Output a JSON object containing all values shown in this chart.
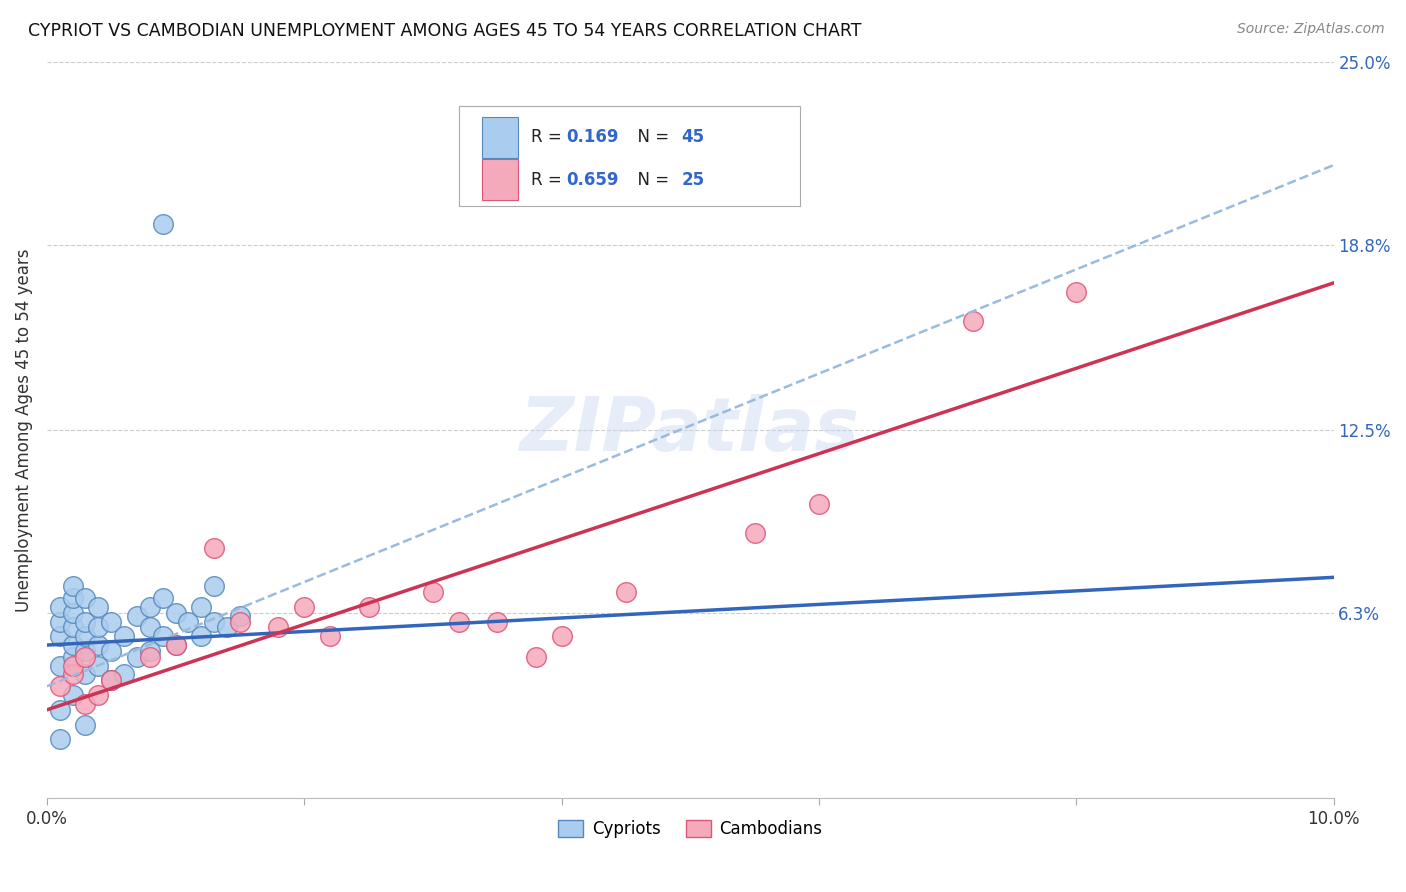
{
  "title": "CYPRIOT VS CAMBODIAN UNEMPLOYMENT AMONG AGES 45 TO 54 YEARS CORRELATION CHART",
  "source": "Source: ZipAtlas.com",
  "ylabel": "Unemployment Among Ages 45 to 54 years",
  "xlim": [
    0.0,
    0.1
  ],
  "ylim": [
    0.0,
    0.25
  ],
  "xtick_positions": [
    0.0,
    0.02,
    0.04,
    0.06,
    0.08,
    0.1
  ],
  "xtick_labels": [
    "0.0%",
    "",
    "",
    "",
    "",
    "10.0%"
  ],
  "ytick_vals_right": [
    0.25,
    0.188,
    0.125,
    0.063
  ],
  "ytick_labels_right": [
    "25.0%",
    "18.8%",
    "12.5%",
    "6.3%"
  ],
  "watermark": "ZIPatlas",
  "cypriot_color": "#aaccee",
  "cypriot_edge_color": "#5588bb",
  "cambodian_color": "#f5aabb",
  "cambodian_edge_color": "#dd5577",
  "cypriot_line_color": "#3366bb",
  "cambodian_line_color": "#cc3355",
  "dashed_line_color": "#99bbdd",
  "cypriot_x": [
    0.001,
    0.001,
    0.001,
    0.001,
    0.002,
    0.002,
    0.002,
    0.002,
    0.002,
    0.002,
    0.003,
    0.003,
    0.003,
    0.003,
    0.003,
    0.004,
    0.004,
    0.004,
    0.004,
    0.005,
    0.005,
    0.005,
    0.006,
    0.006,
    0.007,
    0.007,
    0.008,
    0.008,
    0.008,
    0.009,
    0.009,
    0.01,
    0.01,
    0.011,
    0.012,
    0.012,
    0.013,
    0.013,
    0.014,
    0.015,
    0.001,
    0.002,
    0.003,
    0.009,
    0.001
  ],
  "cypriot_y": [
    0.045,
    0.055,
    0.06,
    0.065,
    0.048,
    0.052,
    0.058,
    0.063,
    0.068,
    0.072,
    0.042,
    0.05,
    0.055,
    0.06,
    0.068,
    0.045,
    0.052,
    0.058,
    0.065,
    0.04,
    0.05,
    0.06,
    0.042,
    0.055,
    0.048,
    0.062,
    0.05,
    0.058,
    0.065,
    0.055,
    0.068,
    0.052,
    0.063,
    0.06,
    0.055,
    0.065,
    0.06,
    0.072,
    0.058,
    0.062,
    0.03,
    0.035,
    0.025,
    0.195,
    0.02
  ],
  "cambodian_x": [
    0.001,
    0.002,
    0.002,
    0.003,
    0.003,
    0.004,
    0.005,
    0.008,
    0.01,
    0.013,
    0.015,
    0.018,
    0.02,
    0.022,
    0.025,
    0.03,
    0.032,
    0.035,
    0.038,
    0.04,
    0.045,
    0.055,
    0.06,
    0.072,
    0.08
  ],
  "cambodian_y": [
    0.038,
    0.042,
    0.045,
    0.032,
    0.048,
    0.035,
    0.04,
    0.048,
    0.052,
    0.085,
    0.06,
    0.058,
    0.065,
    0.055,
    0.065,
    0.07,
    0.06,
    0.06,
    0.048,
    0.055,
    0.07,
    0.09,
    0.1,
    0.162,
    0.172
  ],
  "cy_trend_x": [
    0.0,
    0.1
  ],
  "cy_trend_y": [
    0.052,
    0.075
  ],
  "cam_trend_x": [
    0.0,
    0.1
  ],
  "cam_trend_y": [
    0.03,
    0.175
  ],
  "dash_trend_x": [
    0.0,
    0.1
  ],
  "dash_trend_y": [
    0.038,
    0.215
  ]
}
